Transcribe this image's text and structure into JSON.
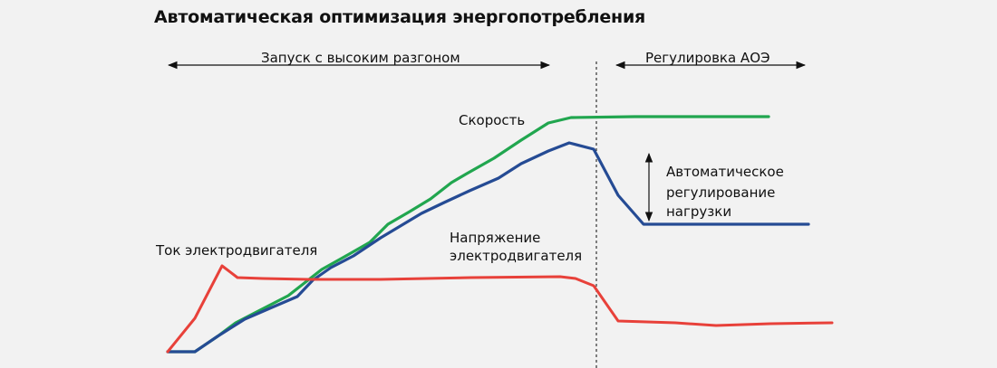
{
  "title": "Автоматическая оптимизация энергопотребления",
  "phases": {
    "startup": "Запуск с высоким разгоном",
    "aeo": "Регулировка АОЭ"
  },
  "labels": {
    "speed": "Скорость",
    "current": "Ток электродвигателя",
    "voltage_line1": "Напряжение",
    "voltage_line2": "электродвигателя",
    "load_line1": "Автоматическое",
    "load_line2": "регулирование",
    "load_line3": "нагрузки"
  },
  "colors": {
    "speed": "#21a64f",
    "voltage": "#254b94",
    "current": "#e8413a",
    "background": "#f2f2f2",
    "text": "#111111"
  },
  "chart_data": {
    "type": "line",
    "series": [
      {
        "name": "Скорость",
        "points": [
          [
            185,
            389
          ],
          [
            215,
            389
          ],
          [
            240,
            372
          ],
          [
            260,
            357
          ],
          [
            285,
            344
          ],
          [
            318,
            327
          ],
          [
            355,
            298
          ],
          [
            380,
            284
          ],
          [
            408,
            268
          ],
          [
            428,
            248
          ],
          [
            452,
            234
          ],
          [
            475,
            220
          ],
          [
            498,
            202
          ],
          [
            515,
            192
          ],
          [
            545,
            175
          ],
          [
            575,
            155
          ],
          [
            605,
            136
          ],
          [
            630,
            130
          ],
          [
            700,
            129
          ],
          [
            800,
            129
          ],
          [
            848,
            129
          ]
        ]
      },
      {
        "name": "Напряжение электродвигателя",
        "points": [
          [
            185,
            389
          ],
          [
            215,
            389
          ],
          [
            240,
            372
          ],
          [
            270,
            353
          ],
          [
            300,
            340
          ],
          [
            328,
            328
          ],
          [
            345,
            310
          ],
          [
            365,
            296
          ],
          [
            390,
            283
          ],
          [
            420,
            263
          ],
          [
            465,
            236
          ],
          [
            490,
            224
          ],
          [
            518,
            211
          ],
          [
            550,
            197
          ],
          [
            575,
            181
          ],
          [
            605,
            167
          ],
          [
            628,
            158
          ],
          [
            655,
            165
          ],
          [
            682,
            216
          ],
          [
            710,
            248
          ],
          [
            800,
            248
          ],
          [
            892,
            248
          ]
        ]
      },
      {
        "name": "Ток электродвигателя",
        "points": [
          [
            185,
            389
          ],
          [
            215,
            352
          ],
          [
            245,
            294
          ],
          [
            262,
            307
          ],
          [
            290,
            308
          ],
          [
            340,
            309
          ],
          [
            420,
            309
          ],
          [
            520,
            307
          ],
          [
            618,
            306
          ],
          [
            635,
            308
          ],
          [
            655,
            316
          ],
          [
            682,
            355
          ],
          [
            745,
            357
          ],
          [
            790,
            360
          ],
          [
            850,
            358
          ],
          [
            918,
            357
          ]
        ]
      }
    ]
  }
}
